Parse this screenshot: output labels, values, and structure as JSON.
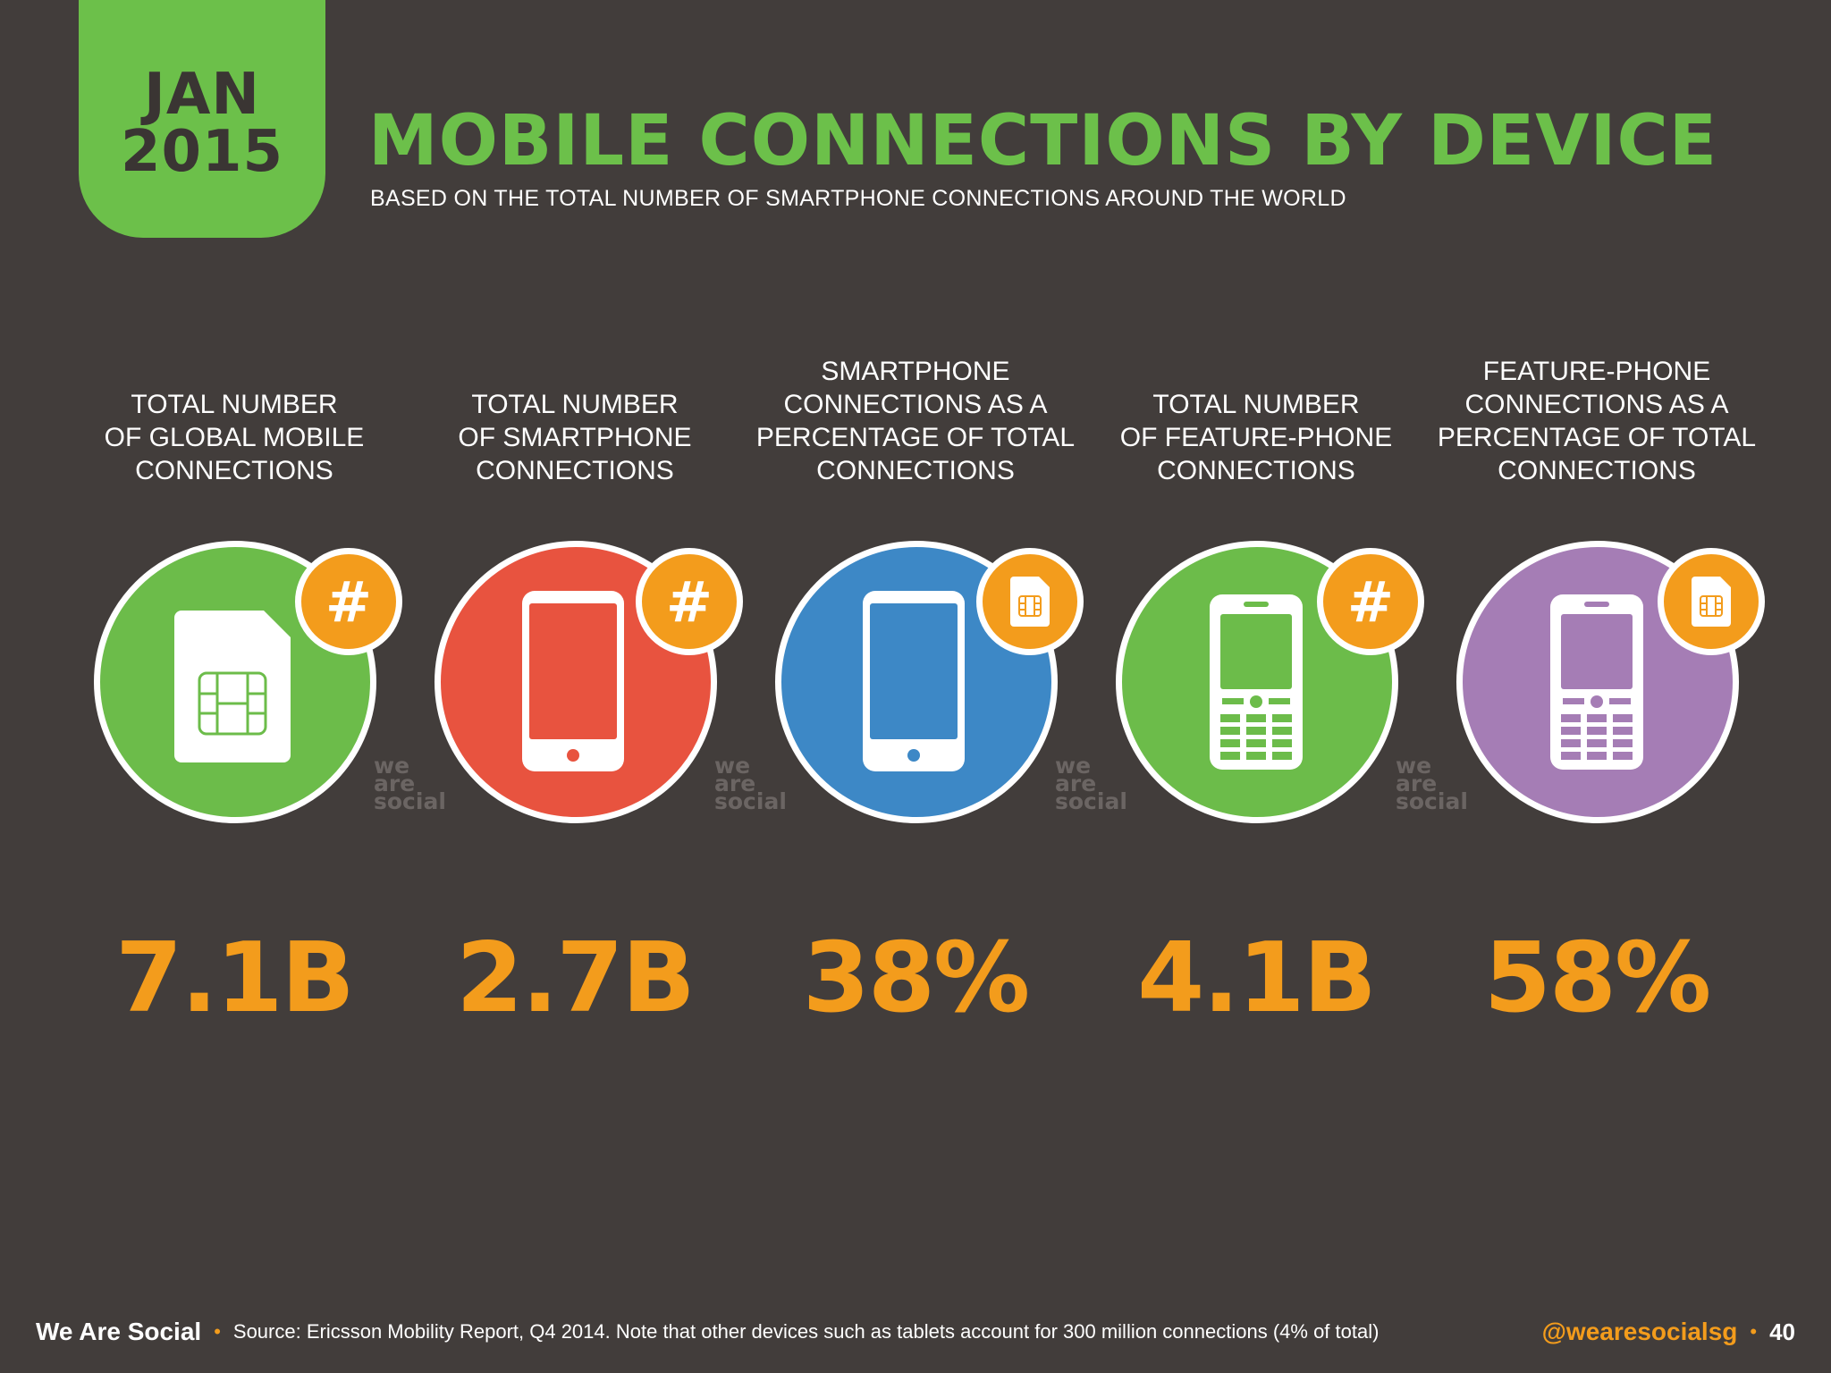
{
  "header": {
    "date_month": "JAN",
    "date_year": "2015",
    "title": "MOBILE CONNECTIONS BY DEVICE",
    "subtitle": "BASED ON THE TOTAL NUMBER OF SMARTPHONE CONNECTIONS AROUND THE WORLD"
  },
  "watermark": [
    "we",
    "are",
    "social"
  ],
  "columns": [
    {
      "label": "TOTAL NUMBER\nOF GLOBAL MOBILE\nCONNECTIONS",
      "value": "7.1B",
      "circle_color": "#6cbc4a",
      "icon": "sim-card-icon",
      "badge": "#"
    },
    {
      "label": "TOTAL NUMBER\nOF SMARTPHONE\nCONNECTIONS",
      "value": "2.7B",
      "circle_color": "#e8533f",
      "icon": "smartphone-icon",
      "badge": "#"
    },
    {
      "label": "SMARTPHONE\nCONNECTIONS AS A\nPERCENTAGE OF TOTAL\nCONNECTIONS",
      "value": "38%",
      "circle_color": "#3d88c6",
      "icon": "smartphone-icon",
      "badge": "sim-card-icon"
    },
    {
      "label": "TOTAL NUMBER\nOF FEATURE-PHONE\nCONNECTIONS",
      "value": "4.1B",
      "circle_color": "#6cbc4a",
      "icon": "feature-phone-icon",
      "badge": "#"
    },
    {
      "label": "FEATURE-PHONE\nCONNECTIONS AS A\nPERCENTAGE OF TOTAL\nCONNECTIONS",
      "value": "58%",
      "circle_color": "#a57db5",
      "icon": "feature-phone-icon",
      "badge": "sim-card-icon"
    }
  ],
  "footer": {
    "brand": "We Are Social",
    "source": "Source: Ericsson Mobility Report, Q4 2014. Note that other devices such as tablets account for 300 million connections (4% of total)",
    "handle": "@wearesocialsg",
    "page": "40"
  },
  "colors": {
    "background": "#423d3b",
    "accent_green": "#6cc04a",
    "accent_orange": "#f39c1c"
  }
}
